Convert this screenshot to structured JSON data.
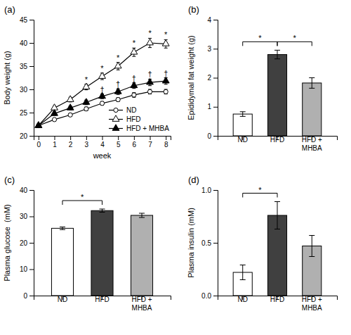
{
  "chart_data": [
    {
      "type": "line",
      "title": "(a)",
      "x_label": "week",
      "y_label": "Body weight (g)",
      "x": [
        0,
        1,
        2,
        3,
        4,
        5,
        6,
        7,
        8
      ],
      "xlim": [
        -0.3,
        8.3
      ],
      "xticks": [
        0,
        1,
        2,
        3,
        4,
        5,
        6,
        7,
        8
      ],
      "ylim": [
        20,
        45
      ],
      "yticks": [
        20,
        25,
        30,
        35,
        40,
        45
      ],
      "legend": "lower-right",
      "grid": false,
      "series": [
        {
          "name": "ND",
          "color": "#000000",
          "marker": "open-circle",
          "line_style": "solid",
          "values": [
            22.2,
            23.5,
            24.5,
            25.8,
            27.0,
            27.8,
            28.8,
            29.5,
            29.5
          ],
          "errors": [
            0.3,
            0.3,
            0.3,
            0.4,
            0.4,
            0.4,
            0.5,
            0.5,
            0.5
          ]
        },
        {
          "name": "HFD",
          "color": "#000000",
          "marker": "open-triangle",
          "line_style": "solid",
          "values": [
            22.2,
            26.0,
            27.8,
            30.5,
            32.8,
            35.0,
            38.0,
            40.0,
            39.8
          ],
          "errors": [
            0.3,
            0.4,
            0.5,
            0.6,
            0.7,
            0.8,
            0.9,
            1.0,
            0.9
          ],
          "annotations": [
            {
              "x": 3,
              "text": "*"
            },
            {
              "x": 4,
              "text": "*"
            },
            {
              "x": 5,
              "text": "*"
            },
            {
              "x": 6,
              "text": "*"
            },
            {
              "x": 7,
              "text": "*"
            },
            {
              "x": 8,
              "text": "*"
            }
          ]
        },
        {
          "name": "HFD + MHBA",
          "color": "#000000",
          "marker": "filled-triangle",
          "line_style": "solid",
          "values": [
            22.2,
            24.8,
            26.0,
            27.2,
            28.5,
            29.5,
            30.8,
            31.5,
            31.8
          ],
          "errors": [
            0.3,
            0.4,
            0.4,
            0.5,
            0.5,
            0.6,
            0.6,
            0.7,
            0.7
          ],
          "annotations": [
            {
              "x": 4,
              "text": "†"
            },
            {
              "x": 5,
              "text": "†"
            },
            {
              "x": 6,
              "text": "†"
            },
            {
              "x": 7,
              "text": "†"
            },
            {
              "x": 8,
              "text": "†"
            }
          ]
        }
      ]
    },
    {
      "type": "bar",
      "title": "(b)",
      "y_label": "Epididymal fat weight (g)",
      "categories": [
        "ND",
        "HFD",
        "HFD +\nMHBA"
      ],
      "values": [
        0.75,
        2.8,
        1.82
      ],
      "errors": [
        0.08,
        0.15,
        0.18
      ],
      "colors": [
        "#ffffff",
        "#404040",
        "#b0b0b0"
      ],
      "ylim": [
        0,
        4
      ],
      "yticks": [
        0,
        1,
        2,
        3,
        4
      ],
      "grid": false,
      "annotations": [
        {
          "between": [
            "ND",
            "HFD"
          ],
          "text": "*"
        },
        {
          "between": [
            "HFD",
            "HFD +\nMHBA"
          ],
          "text": "*"
        }
      ]
    },
    {
      "type": "bar",
      "title": "(c)",
      "y_label": "Plasma glucose  (mM)",
      "categories": [
        "ND",
        "HFD",
        "HFD +\nMHBA"
      ],
      "values": [
        25.5,
        32.2,
        30.4
      ],
      "errors": [
        0.5,
        0.6,
        0.8
      ],
      "colors": [
        "#ffffff",
        "#404040",
        "#b0b0b0"
      ],
      "ylim": [
        0,
        40
      ],
      "yticks": [
        0,
        10,
        20,
        30,
        40
      ],
      "grid": false,
      "annotations": [
        {
          "between": [
            "ND",
            "HFD"
          ],
          "text": "*"
        }
      ]
    },
    {
      "type": "bar",
      "title": "(d)",
      "y_label": "Plasma insulin (mM)",
      "categories": [
        "ND",
        "HFD",
        "HFD +\nMHBA"
      ],
      "values": [
        0.22,
        0.76,
        0.47
      ],
      "errors": [
        0.07,
        0.13,
        0.1
      ],
      "colors": [
        "#ffffff",
        "#404040",
        "#b0b0b0"
      ],
      "ylim": [
        0,
        1.0
      ],
      "yticks": [
        {
          "value": 0.0,
          "label": "0.0"
        },
        0.5,
        {
          "value": 1.0,
          "label": "1.0"
        }
      ],
      "grid": false,
      "annotations": [
        {
          "between": [
            "ND",
            "HFD"
          ],
          "text": "*"
        }
      ]
    }
  ]
}
